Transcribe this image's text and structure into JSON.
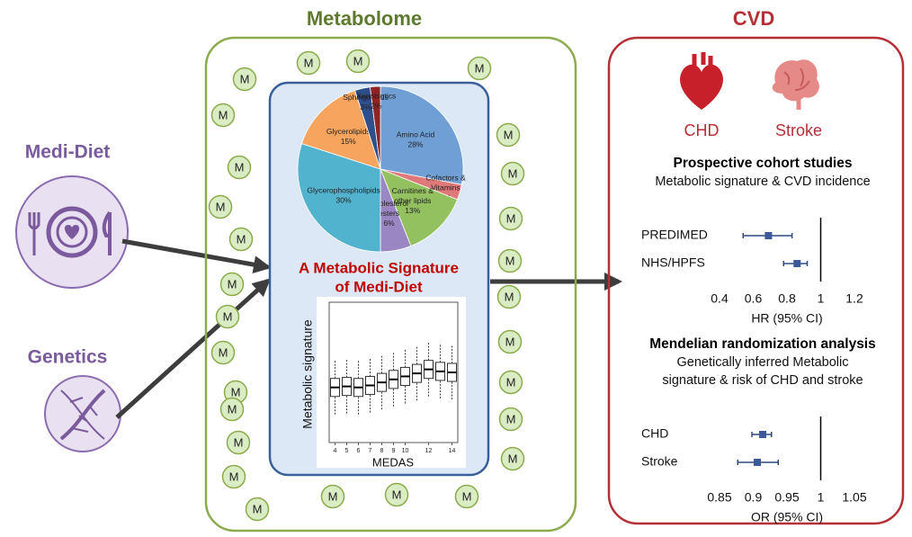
{
  "inputs": {
    "diet": "Medi-Diet",
    "genetics": "Genetics"
  },
  "metabolome": {
    "title": "Metabolome",
    "metabolite_label": "M",
    "pie": {
      "type": "pie",
      "slices": [
        {
          "name_lines": [
            "Amino Acid"
          ],
          "value": 28,
          "value_label": "28%",
          "color": "#6f9fd4"
        },
        {
          "name_lines": [
            "Cofactors &",
            "Vitamins"
          ],
          "value": 3,
          "value_label": "3%",
          "color": "#e07a7a"
        },
        {
          "name_lines": [
            "Carnitines &",
            "other lipids"
          ],
          "value": 13,
          "value_label": "13%",
          "color": "#93c15f"
        },
        {
          "name_lines": [
            "Cholesterol",
            "esters"
          ],
          "value": 6,
          "value_label": "6%",
          "color": "#9b86c4"
        },
        {
          "name_lines": [
            "Glycerophospholipids"
          ],
          "value": 30,
          "value_label": "30%",
          "color": "#52b3cf"
        },
        {
          "name_lines": [
            "Glycerolipids"
          ],
          "value": 15,
          "value_label": "15%",
          "color": "#f7a55e"
        },
        {
          "name_lines": [
            "Sphingolipids"
          ],
          "value": 3,
          "value_label": "3%",
          "color": "#2e4f8c"
        },
        {
          "name_lines": [
            "Xenobiotics"
          ],
          "value": 2,
          "value_label": "2%",
          "color": "#8e2424"
        }
      ]
    },
    "signature_title": [
      "A Metabolic Signature",
      "of Medi-Diet"
    ],
    "boxplot": {
      "type": "box",
      "y_label": "Metabolic signature",
      "x_label": "MEDAS",
      "x": [
        4,
        5,
        6,
        7,
        8,
        9,
        10,
        11,
        12,
        13,
        14
      ],
      "low": [
        2.8,
        2.9,
        2.8,
        3.0,
        3.3,
        3.6,
        3.9,
        4.2,
        4.6,
        4.4,
        4.3
      ],
      "q1": [
        4.6,
        4.7,
        4.6,
        4.8,
        5.1,
        5.4,
        5.7,
        6.0,
        6.4,
        6.2,
        6.1
      ],
      "median": [
        5.5,
        5.6,
        5.5,
        5.7,
        6.0,
        6.3,
        6.6,
        6.9,
        7.3,
        7.1,
        7.0
      ],
      "q3": [
        6.4,
        6.5,
        6.4,
        6.6,
        6.9,
        7.2,
        7.5,
        7.8,
        8.2,
        8.0,
        7.9
      ],
      "high": [
        8.2,
        8.3,
        8.2,
        8.4,
        8.7,
        9.0,
        9.3,
        9.6,
        10.0,
        9.8,
        9.7
      ],
      "xlim": [
        3.5,
        14.5
      ],
      "xticks": [
        4,
        5,
        6,
        7,
        8,
        9,
        10,
        12,
        14
      ],
      "ylim": [
        0,
        14
      ]
    }
  },
  "cvd": {
    "title": "CVD",
    "outcomes": [
      "CHD",
      "Stroke"
    ],
    "cohort": {
      "type": "forest",
      "title": "Prospective cohort studies",
      "subtitle_lines": [
        "Metabolic signature & CVD incidence"
      ],
      "rows": [
        {
          "label": "PREDIMED",
          "estimate": 0.69,
          "ci": [
            0.54,
            0.83
          ]
        },
        {
          "label": "NHS/HPFS",
          "estimate": 0.86,
          "ci": [
            0.78,
            0.92
          ]
        }
      ],
      "reference": 1,
      "xlim": [
        0.4,
        1.2
      ],
      "xticks": [
        0.4,
        0.6,
        0.8,
        1,
        1.2
      ],
      "x_label": "HR (95% CI)"
    },
    "mr": {
      "type": "forest",
      "title": "Mendelian randomization analysis",
      "subtitle_lines": [
        "Genetically inferred Metabolic",
        "signature & risk of CHD and stroke"
      ],
      "rows": [
        {
          "label": "CHD",
          "estimate": 0.914,
          "ci": [
            0.898,
            0.927
          ]
        },
        {
          "label": "Stroke",
          "estimate": 0.906,
          "ci": [
            0.877,
            0.937
          ]
        }
      ],
      "reference": 1,
      "xlim": [
        0.85,
        1.05
      ],
      "xticks": [
        0.85,
        0.9,
        0.95,
        1,
        1.05
      ],
      "x_label": "OR (95% CI)"
    }
  }
}
